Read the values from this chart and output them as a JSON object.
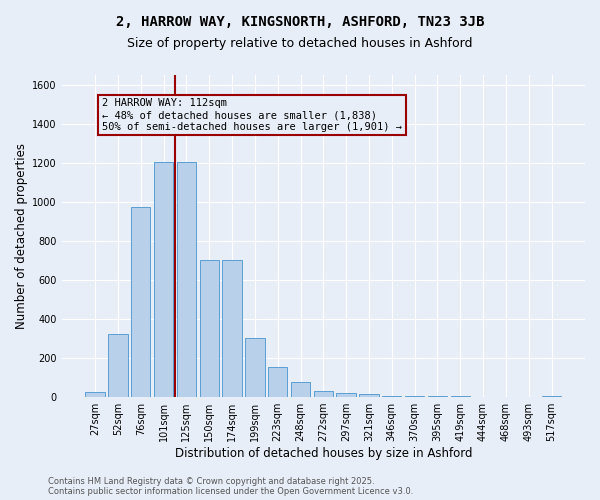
{
  "title_line1": "2, HARROW WAY, KINGSNORTH, ASHFORD, TN23 3JB",
  "title_line2": "Size of property relative to detached houses in Ashford",
  "xlabel": "Distribution of detached houses by size in Ashford",
  "ylabel": "Number of detached properties",
  "categories": [
    "27sqm",
    "52sqm",
    "76sqm",
    "101sqm",
    "125sqm",
    "150sqm",
    "174sqm",
    "199sqm",
    "223sqm",
    "248sqm",
    "272sqm",
    "297sqm",
    "321sqm",
    "346sqm",
    "370sqm",
    "395sqm",
    "419sqm",
    "444sqm",
    "468sqm",
    "493sqm",
    "517sqm"
  ],
  "values": [
    25,
    325,
    975,
    1205,
    1205,
    700,
    700,
    305,
    155,
    75,
    30,
    20,
    15,
    8,
    5,
    5,
    3,
    2,
    2,
    1,
    8
  ],
  "bar_color": "#b8d0ea",
  "bar_edge_color": "#5a9fd4",
  "background_color": "#e8eef8",
  "grid_color": "#ffffff",
  "vline_color": "#9b0000",
  "annotation_text": "2 HARROW WAY: 112sqm\n← 48% of detached houses are smaller (1,838)\n50% of semi-detached houses are larger (1,901) →",
  "annotation_box_color": "#9b0000",
  "ylim": [
    0,
    1650
  ],
  "yticks": [
    0,
    200,
    400,
    600,
    800,
    1000,
    1200,
    1400,
    1600
  ],
  "footer_line1": "Contains HM Land Registry data © Crown copyright and database right 2025.",
  "footer_line2": "Contains public sector information licensed under the Open Government Licence v3.0.",
  "title_fontsize": 10,
  "subtitle_fontsize": 9,
  "axis_label_fontsize": 8.5,
  "tick_fontsize": 7,
  "annotation_fontsize": 7.5,
  "footer_fontsize": 6
}
